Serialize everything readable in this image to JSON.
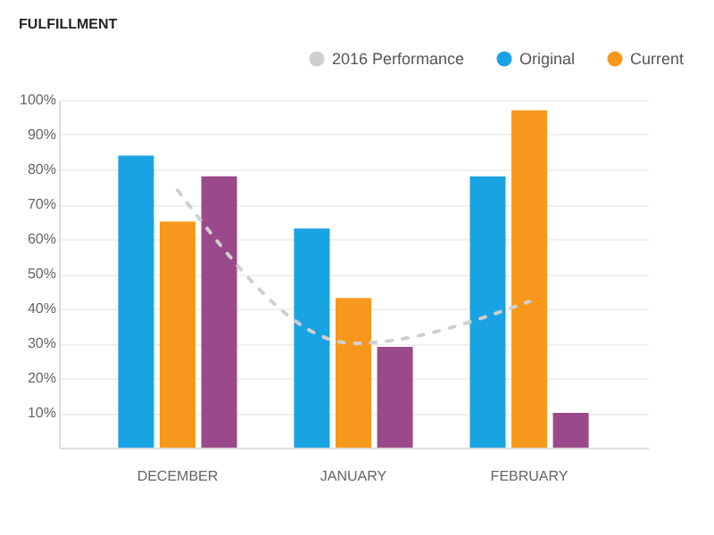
{
  "chart_data": {
    "type": "bar",
    "title": "FULFILLMENT",
    "categories": [
      "DECEMBER",
      "JANUARY",
      "FEBRUARY"
    ],
    "series": [
      {
        "name": "2016 Performance",
        "type": "line",
        "line_style": "dashed",
        "color": "#cfcfcf",
        "values": [
          74,
          30,
          42
        ]
      },
      {
        "name": "Original",
        "color": "#1aa3e3",
        "values": [
          84,
          63,
          78
        ]
      },
      {
        "name": "Current",
        "color": "#f7981c",
        "values": [
          65,
          43,
          97
        ]
      },
      {
        "color": "#9a4a8a",
        "values": [
          78,
          29,
          10
        ]
      }
    ],
    "ylim": [
      0,
      100
    ],
    "yticks": [
      {
        "value": 10,
        "label": "10%"
      },
      {
        "value": 20,
        "label": "20%"
      },
      {
        "value": 30,
        "label": "30%"
      },
      {
        "value": 40,
        "label": "40%"
      },
      {
        "value": 50,
        "label": "50%"
      },
      {
        "value": 60,
        "label": "60%"
      },
      {
        "value": 70,
        "label": "70%"
      },
      {
        "value": 80,
        "label": "80%"
      },
      {
        "value": 90,
        "label": "90%"
      },
      {
        "value": 100,
        "label": "100%"
      }
    ],
    "grid": "y",
    "legend": "top right"
  }
}
